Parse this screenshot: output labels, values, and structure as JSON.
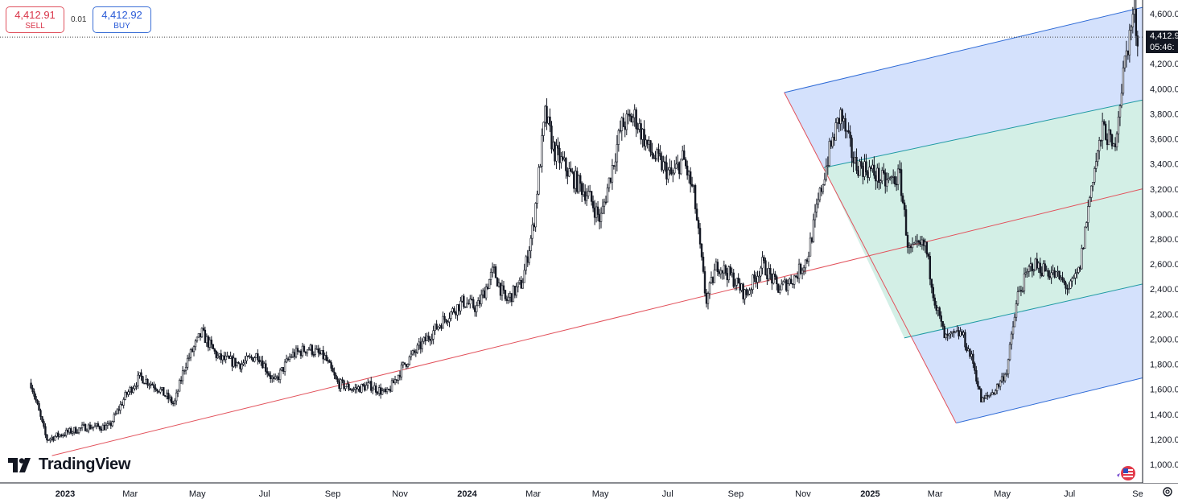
{
  "trade": {
    "sell_price": "4,412.91",
    "sell_label": "SELL",
    "spread": "0.01",
    "buy_price": "4,412.92",
    "buy_label": "BUY"
  },
  "price_tag": {
    "price": "4,412.9",
    "countdown": "05:46:"
  },
  "logo": {
    "text": "TradingView"
  },
  "colors": {
    "candle": "#131722",
    "channel_line": "#2f6bd6",
    "channel_outer_fill": "#d2dffc",
    "channel_inner_fill": "#d3efe6",
    "median_line": "#e2525c",
    "trend_line": "#e2525c",
    "inner_line": "#1f9aa3"
  },
  "chart_data": {
    "type": "candlestick",
    "x_axis": {
      "ticks": [
        "2023",
        "Mar",
        "May",
        "Jul",
        "Sep",
        "Nov",
        "2024",
        "Mar",
        "May",
        "Jul",
        "Sep",
        "Nov",
        "2025",
        "Mar",
        "May",
        "Jul",
        "Se"
      ],
      "tick_dates": [
        "2023-01-01",
        "2023-03-01",
        "2023-05-01",
        "2023-07-01",
        "2023-09-01",
        "2023-11-01",
        "2024-01-01",
        "2024-03-01",
        "2024-05-01",
        "2024-07-01",
        "2024-09-01",
        "2024-11-01",
        "2025-01-01",
        "2025-03-01",
        "2025-05-01",
        "2025-07-01",
        "2025-09-01"
      ]
    },
    "y_axis": {
      "ticks": [
        "4,600.0",
        "4,200.0",
        "4,000.0",
        "3,800.0",
        "3,600.0",
        "3,400.0",
        "3,200.0",
        "3,000.0",
        "2,800.0",
        "2,600.0",
        "2,400.0",
        "2,200.0",
        "2,000.0",
        "1,800.0",
        "1,600.0",
        "1,400.0",
        "1,200.0",
        "1,000.0"
      ],
      "values": [
        4600,
        4200,
        4000,
        3800,
        3600,
        3400,
        3200,
        3000,
        2800,
        2600,
        2400,
        2200,
        2000,
        1800,
        1600,
        1400,
        1200,
        1000
      ],
      "range": [
        900,
        4800
      ]
    },
    "last_price": 4412.92,
    "price_path": [
      [
        "2022-12-01",
        1650
      ],
      [
        "2022-12-15",
        1200
      ],
      [
        "2023-01-01",
        1250
      ],
      [
        "2023-01-20",
        1300
      ],
      [
        "2023-02-10",
        1300
      ],
      [
        "2023-02-25",
        1550
      ],
      [
        "2023-03-10",
        1700
      ],
      [
        "2023-03-25",
        1620
      ],
      [
        "2023-04-10",
        1480
      ],
      [
        "2023-04-20",
        1800
      ],
      [
        "2023-05-05",
        2050
      ],
      [
        "2023-05-20",
        1850
      ],
      [
        "2023-06-10",
        1800
      ],
      [
        "2023-06-25",
        1880
      ],
      [
        "2023-07-10",
        1650
      ],
      [
        "2023-07-25",
        1870
      ],
      [
        "2023-08-10",
        1930
      ],
      [
        "2023-08-25",
        1850
      ],
      [
        "2023-09-05",
        1650
      ],
      [
        "2023-09-20",
        1600
      ],
      [
        "2023-10-05",
        1630
      ],
      [
        "2023-10-20",
        1560
      ],
      [
        "2023-11-05",
        1800
      ],
      [
        "2023-11-25",
        2000
      ],
      [
        "2023-12-10",
        2150
      ],
      [
        "2023-12-28",
        2300
      ],
      [
        "2024-01-10",
        2250
      ],
      [
        "2024-01-25",
        2550
      ],
      [
        "2024-02-05",
        2300
      ],
      [
        "2024-02-20",
        2450
      ],
      [
        "2024-03-01",
        2900
      ],
      [
        "2024-03-12",
        3800
      ],
      [
        "2024-03-20",
        3500
      ],
      [
        "2024-04-05",
        3300
      ],
      [
        "2024-04-20",
        3150
      ],
      [
        "2024-05-01",
        2950
      ],
      [
        "2024-05-20",
        3700
      ],
      [
        "2024-06-01",
        3780
      ],
      [
        "2024-06-15",
        3500
      ],
      [
        "2024-07-05",
        3300
      ],
      [
        "2024-07-15",
        3450
      ],
      [
        "2024-07-25",
        3150
      ],
      [
        "2024-08-05",
        2300
      ],
      [
        "2024-08-15",
        2600
      ],
      [
        "2024-08-28",
        2500
      ],
      [
        "2024-09-10",
        2350
      ],
      [
        "2024-09-25",
        2600
      ],
      [
        "2024-10-10",
        2400
      ],
      [
        "2024-10-25",
        2500
      ],
      [
        "2024-11-05",
        2650
      ],
      [
        "2024-11-15",
        3100
      ],
      [
        "2024-11-25",
        3500
      ],
      [
        "2024-12-05",
        3800
      ],
      [
        "2024-12-18",
        3400
      ],
      [
        "2025-01-01",
        3350
      ],
      [
        "2025-01-15",
        3250
      ],
      [
        "2025-01-28",
        3300
      ],
      [
        "2025-02-05",
        2700
      ],
      [
        "2025-02-20",
        2750
      ],
      [
        "2025-03-01",
        2300
      ],
      [
        "2025-03-10",
        2000
      ],
      [
        "2025-03-25",
        2050
      ],
      [
        "2025-04-05",
        1800
      ],
      [
        "2025-04-12",
        1500
      ],
      [
        "2025-04-25",
        1600
      ],
      [
        "2025-05-05",
        1750
      ],
      [
        "2025-05-15",
        2350
      ],
      [
        "2025-05-28",
        2600
      ],
      [
        "2025-06-10",
        2550
      ],
      [
        "2025-06-20",
        2500
      ],
      [
        "2025-07-01",
        2400
      ],
      [
        "2025-07-10",
        2550
      ],
      [
        "2025-07-22",
        3300
      ],
      [
        "2025-08-01",
        3700
      ],
      [
        "2025-08-10",
        3500
      ],
      [
        "2025-08-20",
        4200
      ],
      [
        "2025-08-28",
        4600
      ],
      [
        "2025-09-01",
        4412.92
      ]
    ],
    "trend_line": {
      "from": [
        "2022-12-20",
        1070
      ],
      "to": [
        "2025-09-05",
        3200
      ]
    },
    "pitchfork": {
      "pivot": [
        "2024-10-15",
        3970
      ],
      "upper": {
        "from": [
          "2024-10-15",
          3970
        ],
        "to": [
          "2025-09-05",
          4650
        ]
      },
      "lower": {
        "from": [
          "2025-03-20",
          1330
        ],
        "to": [
          "2025-09-05",
          1690
        ]
      },
      "inner_upper": {
        "from": [
          "2024-11-20",
          3370
        ],
        "to": [
          "2025-09-05",
          3910
        ]
      },
      "inner_lower": {
        "from": [
          "2025-02-01",
          2010
        ],
        "to": [
          "2025-09-05",
          2440
        ]
      },
      "median_from": [
        "2024-10-15",
        3970
      ],
      "median_to": [
        "2025-03-20",
        1330
      ]
    }
  }
}
